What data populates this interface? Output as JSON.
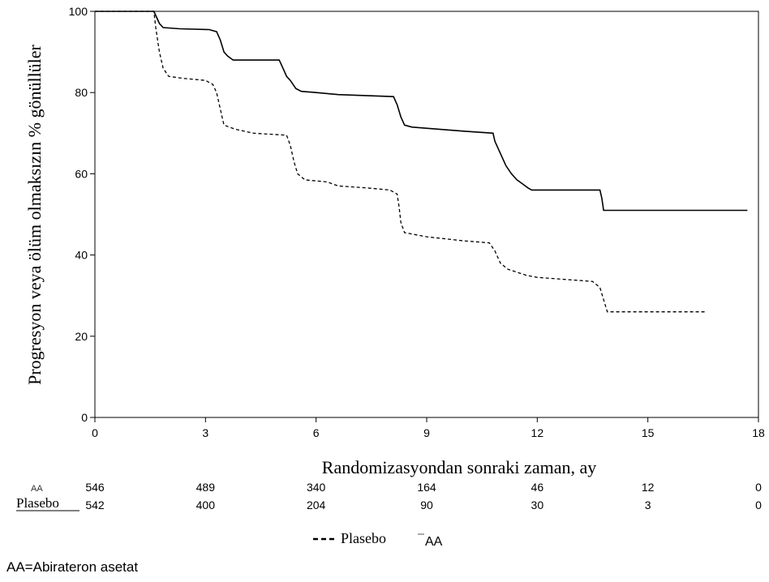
{
  "chart_data": {
    "type": "line",
    "ylabel": "Progresyon veya ölüm olmaksızın % gönüllüler",
    "xlabel": "Randomizasyondan sonraki zaman, ay",
    "xlim": [
      0,
      18
    ],
    "ylim": [
      0,
      100
    ],
    "x_ticks": [
      0,
      3,
      6,
      9,
      12,
      15,
      18
    ],
    "y_ticks": [
      0,
      20,
      40,
      60,
      80,
      100
    ],
    "grid": false,
    "series": [
      {
        "name": "AA",
        "style": "solid",
        "color": "#000000",
        "points": [
          [
            0,
            100
          ],
          [
            1.6,
            100
          ],
          [
            1.65,
            99
          ],
          [
            1.75,
            97
          ],
          [
            1.85,
            96
          ],
          [
            2.3,
            95.7
          ],
          [
            3.1,
            95.5
          ],
          [
            3.3,
            95
          ],
          [
            3.4,
            93
          ],
          [
            3.5,
            90
          ],
          [
            3.6,
            89
          ],
          [
            3.75,
            88
          ],
          [
            5,
            88
          ],
          [
            5.1,
            86
          ],
          [
            5.2,
            84
          ],
          [
            5.3,
            83
          ],
          [
            5.45,
            81
          ],
          [
            5.6,
            80.3
          ],
          [
            6,
            80
          ],
          [
            6.6,
            79.5
          ],
          [
            8.1,
            79
          ],
          [
            8.2,
            77
          ],
          [
            8.3,
            74
          ],
          [
            8.4,
            72
          ],
          [
            8.6,
            71.5
          ],
          [
            9.3,
            71
          ],
          [
            10,
            70.5
          ],
          [
            10.8,
            70
          ],
          [
            10.85,
            68
          ],
          [
            10.95,
            66
          ],
          [
            11.05,
            64
          ],
          [
            11.15,
            62
          ],
          [
            11.3,
            60
          ],
          [
            11.45,
            58.5
          ],
          [
            11.6,
            57.5
          ],
          [
            11.75,
            56.5
          ],
          [
            11.85,
            56
          ],
          [
            13.7,
            56
          ],
          [
            13.75,
            54
          ],
          [
            13.8,
            51
          ],
          [
            17.7,
            51
          ]
        ]
      },
      {
        "name": "Plasebo",
        "style": "dashed",
        "color": "#000000",
        "points": [
          [
            0,
            100
          ],
          [
            1.6,
            100
          ],
          [
            1.65,
            96
          ],
          [
            1.75,
            90
          ],
          [
            1.85,
            86
          ],
          [
            2,
            84
          ],
          [
            2.4,
            83.5
          ],
          [
            3,
            83
          ],
          [
            3.2,
            82
          ],
          [
            3.3,
            80
          ],
          [
            3.4,
            76
          ],
          [
            3.5,
            72
          ],
          [
            3.8,
            71
          ],
          [
            4.3,
            70
          ],
          [
            5.2,
            69.5
          ],
          [
            5.3,
            67
          ],
          [
            5.4,
            63
          ],
          [
            5.5,
            60
          ],
          [
            5.7,
            58.5
          ],
          [
            6.3,
            58
          ],
          [
            6.6,
            57
          ],
          [
            7.4,
            56.5
          ],
          [
            8,
            56
          ],
          [
            8.2,
            55
          ],
          [
            8.25,
            52
          ],
          [
            8.3,
            48
          ],
          [
            8.4,
            45.5
          ],
          [
            9,
            44.5
          ],
          [
            10,
            43.5
          ],
          [
            10.7,
            43
          ],
          [
            10.85,
            41
          ],
          [
            11,
            38
          ],
          [
            11.2,
            36.5
          ],
          [
            11.7,
            35
          ],
          [
            12,
            34.5
          ],
          [
            13.5,
            33.5
          ],
          [
            13.7,
            32
          ],
          [
            13.8,
            29
          ],
          [
            13.9,
            26
          ],
          [
            16.6,
            26
          ]
        ]
      }
    ]
  },
  "risk_table": {
    "rows": [
      {
        "label": "AA",
        "values": [
          "546",
          "489",
          "340",
          "164",
          "46",
          "12",
          "0"
        ]
      },
      {
        "label": "Plasebo",
        "values": [
          "542",
          "400",
          "204",
          "90",
          "30",
          "3",
          "0"
        ]
      }
    ]
  },
  "legend": {
    "items": [
      {
        "label": "Plasebo",
        "style": "dashed"
      },
      {
        "label": "AA",
        "style": "solid"
      }
    ]
  },
  "footnote": "AA=Abirateron asetat"
}
